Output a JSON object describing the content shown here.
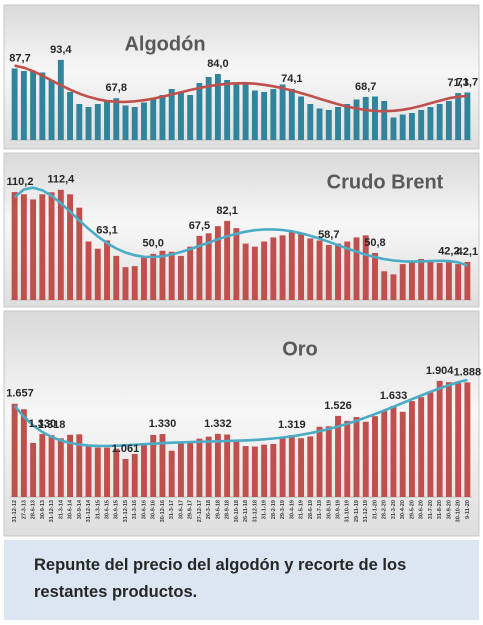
{
  "chart_data": [
    {
      "type": "bar",
      "title": "Algodón",
      "color": "#31849b",
      "line_color": "#c0504d",
      "trendline": true,
      "ylim": [
        40,
        100
      ],
      "values": [
        87.7,
        86,
        86,
        85,
        80,
        93.4,
        72,
        64,
        62,
        64,
        66,
        67.8,
        63,
        62,
        65,
        68,
        70,
        74,
        72,
        70,
        78,
        82,
        84.0,
        80,
        78,
        77,
        73,
        72,
        74,
        77,
        74.1,
        69,
        64,
        61,
        60,
        62,
        64,
        67,
        68.7,
        69,
        66,
        55,
        57,
        58,
        60,
        62,
        64,
        66,
        71.3,
        71.7
      ],
      "value_labels": [
        "87,7",
        null,
        null,
        null,
        null,
        "93,4",
        null,
        null,
        null,
        null,
        null,
        "67,8",
        null,
        null,
        null,
        null,
        null,
        null,
        null,
        null,
        null,
        null,
        "84,0",
        null,
        null,
        null,
        null,
        null,
        null,
        null,
        "74,1",
        null,
        null,
        null,
        null,
        null,
        null,
        null,
        "68,7",
        null,
        null,
        null,
        null,
        null,
        null,
        null,
        null,
        null,
        "71,3",
        "71,7"
      ]
    },
    {
      "type": "bar",
      "title": "Crudo Brent",
      "color": "#c0504d",
      "line_color": "#4bacc6",
      "trendline": true,
      "ylim": [
        5,
        120
      ],
      "values": [
        110.2,
        108,
        103,
        108,
        110,
        112.4,
        108,
        95,
        62,
        55,
        63.1,
        48,
        37,
        38,
        48,
        50.0,
        53,
        52,
        48,
        57,
        67.5,
        70,
        77,
        82.1,
        75,
        60,
        57,
        62,
        66,
        68,
        72,
        70,
        65,
        63,
        58.7,
        60,
        62,
        66,
        68,
        50.8,
        33,
        30,
        40,
        43,
        45,
        44,
        41,
        42.2,
        40,
        42.1
      ],
      "value_labels": [
        "110,2",
        null,
        null,
        null,
        null,
        "112,4",
        null,
        null,
        null,
        null,
        "63,1",
        null,
        null,
        null,
        null,
        "50,0",
        null,
        null,
        null,
        null,
        "67,5",
        null,
        null,
        "82,1",
        null,
        null,
        null,
        null,
        null,
        null,
        null,
        null,
        null,
        null,
        "58,7",
        null,
        null,
        null,
        null,
        "50,8",
        null,
        null,
        null,
        null,
        null,
        null,
        null,
        "42,2",
        null,
        "42,1"
      ]
    },
    {
      "type": "bar",
      "title": "Oro",
      "color": "#c0504d",
      "line_color": "#4bacc6",
      "trendline": true,
      "ylim": [
        650,
        2000
      ],
      "categories": [
        "31-12-12",
        "27-3-13",
        "28-6-13",
        "30-9-13",
        "31-12-13",
        "31-3-14",
        "30-6-14",
        "30-9-14",
        "31-12-14",
        "31-3-15",
        "30-6-15",
        "30-9-15",
        "31-12-15",
        "31-3-16",
        "30-6-16",
        "30-9-16",
        "30-12-16",
        "31-3-17",
        "30-6-17",
        "29-9-17",
        "27-12-17",
        "26-3-18",
        "29-6-18",
        "28-9-18",
        "30-10-18",
        "26-11-18",
        "31-12-18",
        "31-1-19",
        "28-2-19",
        "29-3-19",
        "30-4-19",
        "31-5-19",
        "28-6-19",
        "31-7-19",
        "30-8-19",
        "30-9-19",
        "31-10-19",
        "29-11-19",
        "31-12-19",
        "31-1-20",
        "28-2-20",
        "31-3-20",
        "30-4-20",
        "29-5-20",
        "30-6-20",
        "31-7-20",
        "31-8-20",
        "30-9-20",
        "30-10-20",
        "9-11-20"
      ],
      "values": [
        1657,
        1598,
        1234,
        1330,
        1318,
        1284,
        1322,
        1327,
        1206,
        1184,
        1183,
        1172,
        1061,
        1115,
        1232,
        1320,
        1330,
        1150,
        1245,
        1242,
        1280,
        1302,
        1332,
        1325,
        1253,
        1200,
        1195,
        1215,
        1223,
        1282,
        1319,
        1285,
        1304,
        1409,
        1413,
        1526,
        1472,
        1514,
        1463,
        1523,
        1585,
        1633,
        1570,
        1686,
        1728,
        1780,
        1904,
        1890,
        1880,
        1888
      ],
      "value_labels": [
        "1.657",
        null,
        null,
        "1.330",
        "1.318",
        null,
        null,
        null,
        null,
        null,
        null,
        null,
        "1.061",
        null,
        null,
        null,
        "1.330",
        null,
        null,
        null,
        null,
        null,
        "1.332",
        null,
        null,
        null,
        null,
        null,
        null,
        null,
        "1.319",
        null,
        null,
        null,
        null,
        "1.526",
        null,
        null,
        null,
        null,
        null,
        "1.633",
        null,
        null,
        null,
        null,
        "1.904",
        null,
        null,
        "1.888"
      ]
    }
  ],
  "caption": "Repunte del precio del algodón y recorte de los restantes productos."
}
